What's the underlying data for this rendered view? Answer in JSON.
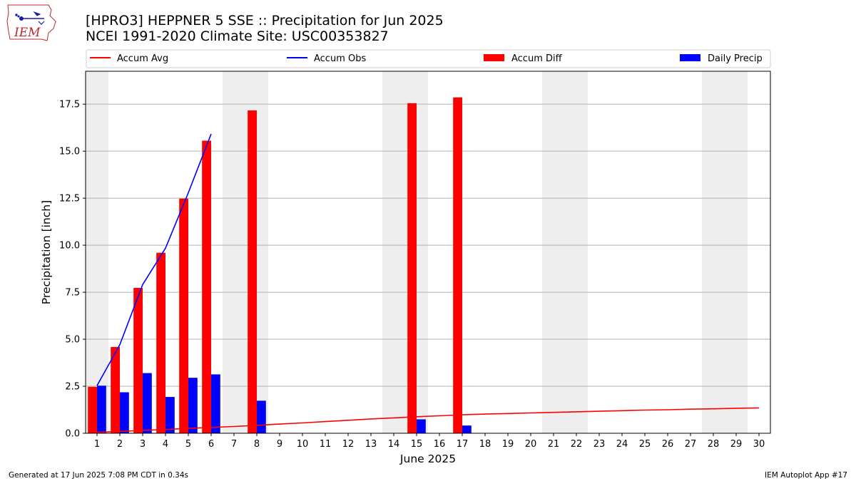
{
  "header": {
    "title_line1": "[HPRO3] HEPPNER 5 SSE :: Precipitation for Jun 2025",
    "title_line2": "NCEI 1991-2020 Climate Site: USC00353827",
    "logo_text": "IEM"
  },
  "footer": {
    "generated": "Generated at 17 Jun 2025 7:08 PM CDT in 0.34s",
    "app": "IEM Autoplot App #17"
  },
  "colors": {
    "accum_avg": "#ff0000",
    "accum_obs": "#0000ff",
    "accum_diff": "#ff0000",
    "daily_precip": "#0000ff",
    "weekend_band": "#eeeeee",
    "grid": "#b0b0b0"
  },
  "chart_data": {
    "type": "bar",
    "xlabel": "June 2025",
    "ylabel": "Precipitation [inch]",
    "ylim": [
      0,
      19.25
    ],
    "xlim": [
      0.5,
      30.5
    ],
    "yticks": [
      "0.0",
      "2.5",
      "5.0",
      "7.5",
      "10.0",
      "12.5",
      "15.0",
      "17.5"
    ],
    "xticks": [
      "1",
      "2",
      "3",
      "4",
      "5",
      "6",
      "7",
      "8",
      "9",
      "10",
      "11",
      "12",
      "13",
      "14",
      "15",
      "16",
      "17",
      "18",
      "19",
      "20",
      "21",
      "22",
      "23",
      "24",
      "25",
      "26",
      "27",
      "28",
      "29",
      "30"
    ],
    "grid": "horizontal",
    "legend_position": "top",
    "weekend_bands": [
      [
        0.5,
        1.5
      ],
      [
        6.5,
        8.5
      ],
      [
        13.5,
        15.5
      ],
      [
        20.5,
        22.5
      ],
      [
        27.5,
        29.5
      ]
    ],
    "legend": [
      "Accum Avg",
      "Accum Obs",
      "Accum Diff",
      "Daily Precip"
    ],
    "series": [
      {
        "name": "Accum Avg",
        "kind": "line",
        "x": [
          1,
          2,
          3,
          4,
          5,
          6,
          7,
          8,
          9,
          10,
          11,
          12,
          13,
          14,
          15,
          16,
          17,
          18,
          19,
          20,
          21,
          22,
          23,
          24,
          25,
          26,
          27,
          28,
          29,
          30
        ],
        "values": [
          0.05,
          0.1,
          0.15,
          0.2,
          0.26,
          0.31,
          0.36,
          0.42,
          0.49,
          0.55,
          0.62,
          0.69,
          0.76,
          0.82,
          0.88,
          0.93,
          0.98,
          1.02,
          1.05,
          1.08,
          1.11,
          1.14,
          1.17,
          1.2,
          1.23,
          1.25,
          1.28,
          1.3,
          1.33,
          1.35
        ]
      },
      {
        "name": "Accum Obs",
        "kind": "line",
        "x": [
          1,
          2,
          3,
          4,
          5,
          6
        ],
        "values": [
          2.53,
          4.71,
          7.91,
          9.84,
          12.79,
          15.92
        ]
      },
      {
        "name": "Accum Diff",
        "kind": "bar",
        "x": [
          1,
          2,
          3,
          4,
          5,
          6,
          8,
          15,
          17
        ],
        "values": [
          2.47,
          4.59,
          7.73,
          9.6,
          12.48,
          15.56,
          17.17,
          17.55,
          17.86
        ]
      },
      {
        "name": "Daily Precip",
        "kind": "bar",
        "x": [
          1,
          2,
          3,
          4,
          5,
          6,
          8,
          15,
          17
        ],
        "values": [
          2.53,
          2.18,
          3.2,
          1.93,
          2.95,
          3.13,
          1.73,
          0.74,
          0.41
        ]
      }
    ]
  }
}
